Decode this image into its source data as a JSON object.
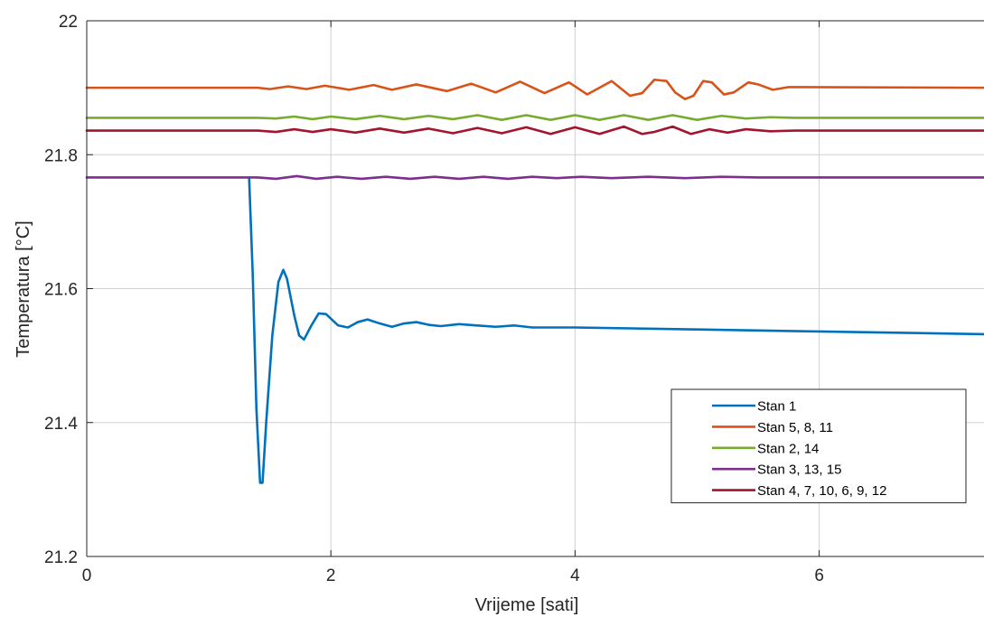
{
  "chart_data": {
    "type": "line",
    "title": "",
    "xlabel": "Vrijeme [sati]",
    "ylabel": "Temperatura [°C]",
    "xlim": [
      0,
      7.35
    ],
    "ylim": [
      21.2,
      22.0
    ],
    "xticks": [
      0,
      2,
      4,
      6
    ],
    "xtick_labels": [
      "0",
      "2",
      "4",
      "6"
    ],
    "yticks": [
      21.2,
      21.4,
      21.6,
      21.8,
      22.0
    ],
    "ytick_labels": [
      "21.2",
      "21.4",
      "21.6",
      "21.8",
      "22"
    ],
    "grid": true,
    "legend_position": "bottom-right",
    "series": [
      {
        "name": "Stan 1",
        "color": "#0072BD",
        "points": [
          [
            1.33,
            21.766
          ],
          [
            1.36,
            21.62
          ],
          [
            1.39,
            21.42
          ],
          [
            1.42,
            21.31
          ],
          [
            1.44,
            21.31
          ],
          [
            1.47,
            21.4
          ],
          [
            1.52,
            21.53
          ],
          [
            1.57,
            21.61
          ],
          [
            1.61,
            21.628
          ],
          [
            1.64,
            21.615
          ],
          [
            1.7,
            21.56
          ],
          [
            1.74,
            21.53
          ],
          [
            1.78,
            21.524
          ],
          [
            1.84,
            21.545
          ],
          [
            1.9,
            21.563
          ],
          [
            1.96,
            21.562
          ],
          [
            2.06,
            21.545
          ],
          [
            2.14,
            21.542
          ],
          [
            2.22,
            21.55
          ],
          [
            2.3,
            21.554
          ],
          [
            2.4,
            21.548
          ],
          [
            2.5,
            21.543
          ],
          [
            2.6,
            21.548
          ],
          [
            2.7,
            21.55
          ],
          [
            2.8,
            21.546
          ],
          [
            2.9,
            21.544
          ],
          [
            3.05,
            21.547
          ],
          [
            3.2,
            21.545
          ],
          [
            3.35,
            21.543
          ],
          [
            3.5,
            21.545
          ],
          [
            3.65,
            21.542
          ],
          [
            4.0,
            21.542
          ],
          [
            5.0,
            21.539
          ],
          [
            6.0,
            21.536
          ],
          [
            7.35,
            21.532
          ]
        ]
      },
      {
        "name": "Stan 5, 8, 11",
        "color": "#D95319",
        "points": [
          [
            0.0,
            21.9
          ],
          [
            1.4,
            21.9
          ],
          [
            1.5,
            21.898
          ],
          [
            1.65,
            21.902
          ],
          [
            1.8,
            21.898
          ],
          [
            1.95,
            21.903
          ],
          [
            2.15,
            21.897
          ],
          [
            2.35,
            21.904
          ],
          [
            2.5,
            21.897
          ],
          [
            2.7,
            21.905
          ],
          [
            2.95,
            21.895
          ],
          [
            3.15,
            21.906
          ],
          [
            3.35,
            21.893
          ],
          [
            3.55,
            21.909
          ],
          [
            3.75,
            21.892
          ],
          [
            3.95,
            21.908
          ],
          [
            4.1,
            21.89
          ],
          [
            4.3,
            21.91
          ],
          [
            4.45,
            21.888
          ],
          [
            4.55,
            21.892
          ],
          [
            4.65,
            21.912
          ],
          [
            4.75,
            21.91
          ],
          [
            4.82,
            21.893
          ],
          [
            4.9,
            21.883
          ],
          [
            4.97,
            21.888
          ],
          [
            5.05,
            21.91
          ],
          [
            5.12,
            21.908
          ],
          [
            5.22,
            21.89
          ],
          [
            5.3,
            21.893
          ],
          [
            5.42,
            21.908
          ],
          [
            5.5,
            21.905
          ],
          [
            5.62,
            21.897
          ],
          [
            5.75,
            21.901
          ],
          [
            7.35,
            21.9
          ]
        ]
      },
      {
        "name": "Stan 2, 14",
        "color": "#77AC30",
        "points": [
          [
            0.0,
            21.855
          ],
          [
            1.4,
            21.855
          ],
          [
            1.55,
            21.854
          ],
          [
            1.7,
            21.857
          ],
          [
            1.85,
            21.853
          ],
          [
            2.0,
            21.857
          ],
          [
            2.2,
            21.853
          ],
          [
            2.4,
            21.858
          ],
          [
            2.6,
            21.853
          ],
          [
            2.8,
            21.858
          ],
          [
            3.0,
            21.853
          ],
          [
            3.2,
            21.859
          ],
          [
            3.4,
            21.852
          ],
          [
            3.6,
            21.859
          ],
          [
            3.8,
            21.852
          ],
          [
            4.0,
            21.859
          ],
          [
            4.2,
            21.852
          ],
          [
            4.4,
            21.859
          ],
          [
            4.6,
            21.852
          ],
          [
            4.8,
            21.859
          ],
          [
            5.0,
            21.852
          ],
          [
            5.2,
            21.858
          ],
          [
            5.4,
            21.854
          ],
          [
            5.6,
            21.856
          ],
          [
            5.8,
            21.855
          ],
          [
            7.35,
            21.855
          ]
        ]
      },
      {
        "name": "Stan 3, 13, 15",
        "color": "#7E2F8E",
        "points": [
          [
            0.0,
            21.766
          ],
          [
            1.4,
            21.766
          ],
          [
            1.55,
            21.764
          ],
          [
            1.72,
            21.768
          ],
          [
            1.88,
            21.764
          ],
          [
            2.05,
            21.767
          ],
          [
            2.25,
            21.764
          ],
          [
            2.45,
            21.767
          ],
          [
            2.65,
            21.764
          ],
          [
            2.85,
            21.767
          ],
          [
            3.05,
            21.764
          ],
          [
            3.25,
            21.767
          ],
          [
            3.45,
            21.764
          ],
          [
            3.65,
            21.767
          ],
          [
            3.85,
            21.765
          ],
          [
            4.05,
            21.767
          ],
          [
            4.3,
            21.765
          ],
          [
            4.6,
            21.767
          ],
          [
            4.9,
            21.765
          ],
          [
            5.2,
            21.767
          ],
          [
            5.5,
            21.766
          ],
          [
            7.35,
            21.766
          ]
        ]
      },
      {
        "name": "Stan 4, 7, 10, 6, 9, 12",
        "color": "#A2142F",
        "points": [
          [
            0.0,
            21.836
          ],
          [
            1.4,
            21.836
          ],
          [
            1.55,
            21.834
          ],
          [
            1.7,
            21.838
          ],
          [
            1.85,
            21.834
          ],
          [
            2.0,
            21.838
          ],
          [
            2.2,
            21.833
          ],
          [
            2.4,
            21.839
          ],
          [
            2.6,
            21.833
          ],
          [
            2.8,
            21.839
          ],
          [
            3.0,
            21.832
          ],
          [
            3.2,
            21.84
          ],
          [
            3.4,
            21.832
          ],
          [
            3.6,
            21.841
          ],
          [
            3.8,
            21.831
          ],
          [
            4.0,
            21.841
          ],
          [
            4.2,
            21.831
          ],
          [
            4.4,
            21.842
          ],
          [
            4.55,
            21.831
          ],
          [
            4.65,
            21.834
          ],
          [
            4.8,
            21.842
          ],
          [
            4.95,
            21.831
          ],
          [
            5.1,
            21.838
          ],
          [
            5.25,
            21.833
          ],
          [
            5.4,
            21.838
          ],
          [
            5.6,
            21.835
          ],
          [
            5.8,
            21.836
          ],
          [
            7.35,
            21.836
          ]
        ]
      }
    ]
  }
}
